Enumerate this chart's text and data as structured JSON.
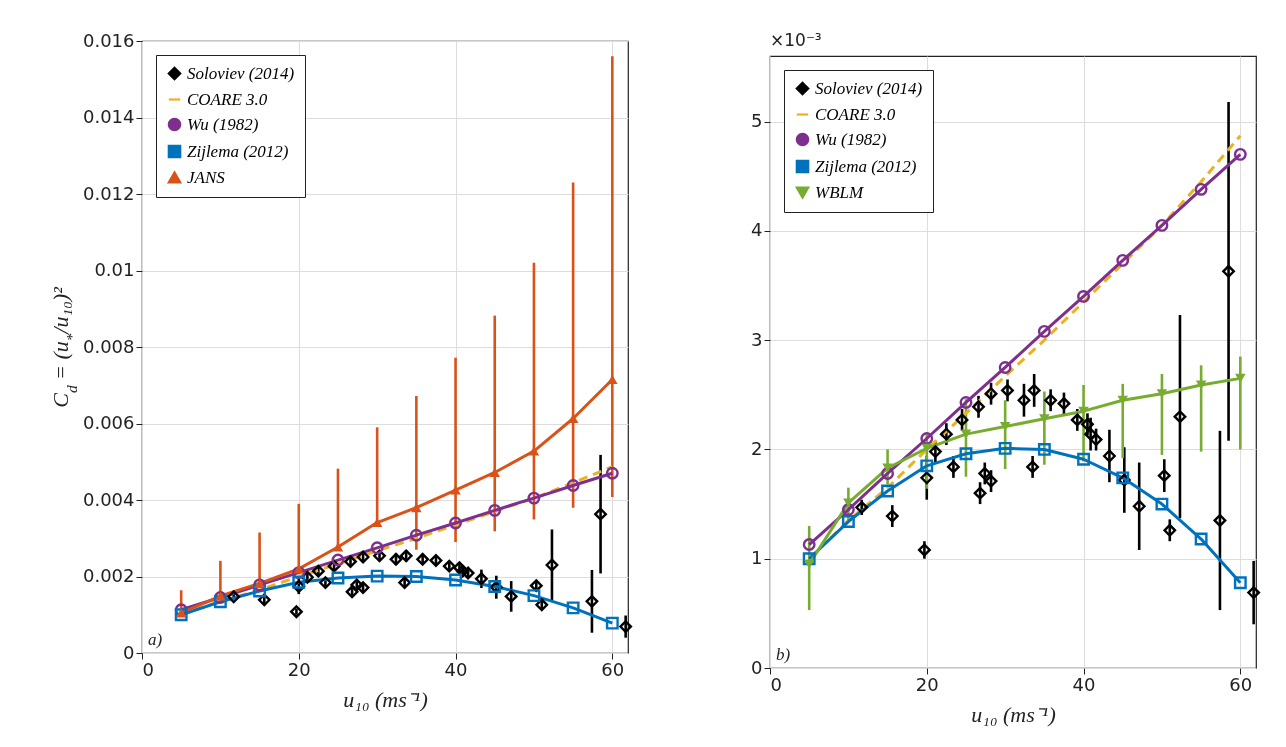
{
  "chart_data": [
    {
      "type": "line",
      "xlabel": "u₁₀ (ms⁻¹)",
      "ylabel": "C$_{d}$ = (u$_{*}$/u₁₀)²",
      "annotations": [
        "a)"
      ],
      "x": [
        5,
        10,
        15,
        20,
        25,
        30,
        35,
        40,
        45,
        50,
        55,
        60
      ],
      "xlim": [
        0,
        62
      ],
      "xticks": [
        0,
        20,
        40,
        60
      ],
      "ylim": [
        0,
        0.016
      ],
      "yticks": [
        0,
        0.002,
        0.004,
        0.006,
        0.008,
        0.01,
        0.012,
        0.014,
        0.016
      ],
      "grid": true,
      "legend": "top left",
      "series": [
        {
          "name": "Soloviev (2014)",
          "type": "scatter",
          "marker": "diamond",
          "color": "#000000",
          "x": [
            11.7,
            15.6,
            19.7,
            20.0,
            21.1,
            22.5,
            23.4,
            24.5,
            26.6,
            26.8,
            27.4,
            28.2,
            28.2,
            30.3,
            32.4,
            33.5,
            33.7,
            35.8,
            37.5,
            39.2,
            40.5,
            40.9,
            41.6,
            43.3,
            45.2,
            47.1,
            50.3,
            51.0,
            52.3,
            57.4,
            58.5,
            61.7
          ],
          "values": [
            0.00147,
            0.00139,
            0.00108,
            0.00174,
            0.00198,
            0.00214,
            0.00184,
            0.00227,
            0.00239,
            0.0016,
            0.00178,
            0.00171,
            0.00251,
            0.00254,
            0.00245,
            0.00184,
            0.00254,
            0.00245,
            0.00242,
            0.00227,
            0.00223,
            0.00214,
            0.00209,
            0.00194,
            0.00172,
            0.00148,
            0.00176,
            0.00126,
            0.0023,
            0.00135,
            0.00363,
            0.00069
          ],
          "errors": [
            7e-05,
            0.0001,
            8e-05,
            0.0002,
            0.0001,
            0.0001,
            0.0001,
            0.0001,
            0.0001,
            0.0001,
            0.0001,
            0.0001,
            0.0001,
            0.0001,
            0.00015,
            0.0001,
            0.00015,
            0.0001,
            0.0001,
            0.0001,
            0.0001,
            0.00015,
            0.0001,
            0.00024,
            0.0003,
            0.0004,
            0.00015,
            0.0001,
            0.00093,
            0.00082,
            0.00155,
            0.00029
          ]
        },
        {
          "name": "COARE 3.0",
          "type": "line",
          "marker": "none",
          "line_style": "dashed",
          "color": "#edb120",
          "values": [
            0.001,
            0.00135,
            0.00165,
            0.002,
            0.00233,
            0.00267,
            0.003,
            0.00335,
            0.0037,
            0.00405,
            0.00445,
            0.00487
          ]
        },
        {
          "name": "Wu (1982)",
          "type": "line",
          "marker": "circle",
          "line_style": "solid",
          "color": "#7e2f8e",
          "values": [
            0.00113,
            0.00145,
            0.00178,
            0.0021,
            0.00243,
            0.00275,
            0.00308,
            0.0034,
            0.00373,
            0.00405,
            0.00438,
            0.0047
          ]
        },
        {
          "name": "Zijlema (2012)",
          "type": "line",
          "marker": "square",
          "line_style": "solid",
          "color": "#0072bd",
          "values": [
            0.001,
            0.00134,
            0.00162,
            0.00185,
            0.00196,
            0.00201,
            0.002,
            0.00191,
            0.00174,
            0.0015,
            0.00118,
            0.00078
          ]
        },
        {
          "name": "JANS",
          "type": "line",
          "marker": "triangle",
          "line_style": "solid",
          "color": "#d95319",
          "values": [
            0.00105,
            0.00149,
            0.00182,
            0.0022,
            0.00277,
            0.00341,
            0.0038,
            0.00426,
            0.00472,
            0.00528,
            0.00613,
            0.00715
          ],
          "errors": [
            [
              0.00105,
              0.00164
            ],
            [
              0.00149,
              0.00241
            ],
            [
              0.00182,
              0.00315
            ],
            [
              0.0022,
              0.0039
            ],
            [
              0.00277,
              0.00482
            ],
            [
              0.00341,
              0.0059
            ],
            [
              0.0027,
              0.00672
            ],
            [
              0.0029,
              0.00772
            ],
            [
              0.00318,
              0.00882
            ],
            [
              0.00349,
              0.0102
            ],
            [
              0.0038,
              0.0123
            ],
            [
              0.00408,
              0.0156
            ]
          ]
        }
      ]
    },
    {
      "type": "line",
      "xlabel": "u₁₀ (ms⁻¹)",
      "annotations": [
        "b)",
        "×10⁻³"
      ],
      "x": [
        5,
        10,
        15,
        20,
        25,
        30,
        35,
        40,
        45,
        50,
        55,
        60
      ],
      "xlim": [
        0,
        62
      ],
      "xticks": [
        0,
        20,
        40,
        60
      ],
      "ylim": [
        0,
        5.6
      ],
      "yticks": [
        0,
        1,
        2,
        3,
        4,
        5
      ],
      "grid": true,
      "legend": "top left",
      "series": [
        {
          "name": "Soloviev (2014)",
          "type": "scatter",
          "marker": "diamond",
          "color": "#000000",
          "x": [
            11.7,
            15.6,
            19.7,
            20.0,
            21.1,
            22.5,
            23.4,
            24.5,
            26.6,
            26.8,
            27.4,
            28.2,
            28.2,
            30.3,
            32.4,
            33.5,
            33.7,
            35.8,
            37.5,
            39.2,
            40.5,
            40.9,
            41.6,
            43.3,
            45.2,
            47.1,
            50.3,
            51.0,
            52.3,
            57.4,
            58.5,
            61.7
          ],
          "values": [
            1.47,
            1.39,
            1.08,
            1.74,
            1.98,
            2.14,
            1.84,
            2.27,
            2.39,
            1.6,
            1.78,
            1.71,
            2.51,
            2.54,
            2.45,
            1.84,
            2.54,
            2.45,
            2.42,
            2.27,
            2.23,
            2.14,
            2.09,
            1.94,
            1.72,
            1.48,
            1.76,
            1.26,
            2.3,
            1.35,
            3.63,
            0.69
          ],
          "errors": [
            0.07,
            0.1,
            0.08,
            0.2,
            0.1,
            0.1,
            0.1,
            0.1,
            0.1,
            0.1,
            0.1,
            0.1,
            0.1,
            0.1,
            0.15,
            0.1,
            0.15,
            0.1,
            0.1,
            0.1,
            0.1,
            0.15,
            0.1,
            0.24,
            0.3,
            0.4,
            0.15,
            0.1,
            0.93,
            0.82,
            1.55,
            0.29
          ]
        },
        {
          "name": "COARE 3.0",
          "type": "line",
          "marker": "none",
          "line_style": "dashed",
          "color": "#edb120",
          "values": [
            1.0,
            1.35,
            1.65,
            2.0,
            2.33,
            2.67,
            3.0,
            3.35,
            3.7,
            4.05,
            4.45,
            4.87
          ]
        },
        {
          "name": "Wu (1982)",
          "type": "line",
          "marker": "circle",
          "line_style": "solid",
          "color": "#7e2f8e",
          "values": [
            1.13,
            1.45,
            1.78,
            2.1,
            2.43,
            2.75,
            3.08,
            3.4,
            3.73,
            4.05,
            4.38,
            4.7
          ]
        },
        {
          "name": "Zijlema (2012)",
          "type": "line",
          "marker": "square",
          "line_style": "solid",
          "color": "#0072bd",
          "values": [
            1.0,
            1.34,
            1.62,
            1.85,
            1.96,
            2.01,
            2.0,
            1.91,
            1.74,
            1.5,
            1.18,
            0.78
          ]
        },
        {
          "name": "WBLM",
          "type": "line",
          "marker": "triangle-down",
          "line_style": "solid",
          "color": "#77ac30",
          "values": [
            0.95,
            1.51,
            1.83,
            2.01,
            2.14,
            2.21,
            2.28,
            2.35,
            2.45,
            2.51,
            2.59,
            2.65
          ],
          "errors": [
            [
              0.53,
              1.3
            ],
            [
              1.35,
              1.65
            ],
            [
              1.68,
              2.0
            ],
            [
              1.64,
              2.14
            ],
            [
              1.75,
              2.46
            ],
            [
              1.82,
              2.45
            ],
            [
              1.86,
              2.53
            ],
            [
              1.89,
              2.59
            ],
            [
              1.92,
              2.6
            ],
            [
              1.95,
              2.69
            ],
            [
              1.98,
              2.77
            ],
            [
              2.0,
              2.85
            ]
          ]
        }
      ]
    }
  ]
}
